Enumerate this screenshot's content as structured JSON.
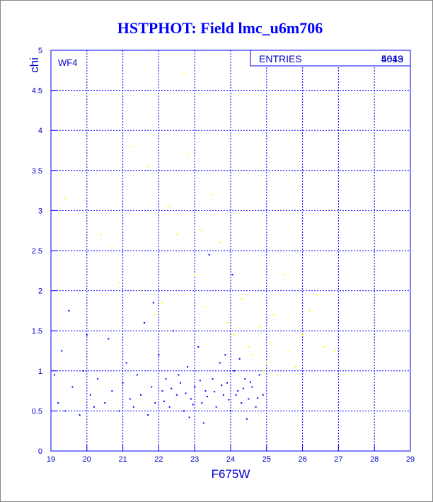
{
  "chart_data": {
    "type": "scatter",
    "title": "HSTPHOT: Field lmc_u6m706",
    "xlabel": "F675W",
    "ylabel": "chi",
    "panel_label": "WF4",
    "stats_label": "ENTRIES",
    "stats_values": [
      4013,
      5649
    ],
    "xlim": [
      19,
      29
    ],
    "ylim": [
      0,
      5
    ],
    "xticks": [
      19,
      20,
      21,
      22,
      23,
      24,
      25,
      26,
      27,
      28,
      29
    ],
    "yticks": [
      0,
      0.5,
      1,
      1.5,
      2,
      2.5,
      3,
      3.5,
      4,
      4.5,
      5
    ],
    "grid": true,
    "series": [
      {
        "color": "#0000ff",
        "x": [
          19.1,
          19.2,
          19.3,
          19.4,
          19.5,
          19.6,
          19.8,
          19.9,
          20.1,
          20.2,
          20.3,
          20.5,
          20.6,
          20.7,
          20.9,
          21.0,
          21.1,
          21.2,
          21.3,
          21.4,
          21.5,
          21.6,
          21.7,
          21.8,
          21.9,
          22.0,
          22.1,
          22.2,
          22.3,
          22.4,
          22.5,
          22.6,
          22.7,
          22.8,
          22.9,
          23.0,
          23.1,
          23.2,
          23.3,
          23.4,
          23.5,
          23.6,
          23.7,
          23.8,
          23.9,
          24.0,
          24.1,
          24.2,
          24.3,
          24.4,
          24.5,
          24.6,
          24.7,
          24.8,
          24.9,
          22.15,
          22.35,
          22.55,
          22.75,
          22.95,
          23.15,
          23.35,
          23.55,
          23.75,
          23.95,
          24.15,
          24.35,
          24.55,
          24.75,
          24.25,
          23.85,
          24.45,
          23.25,
          22.85,
          24.05,
          21.85,
          20.0
        ],
        "y": [
          0.95,
          0.6,
          1.25,
          0.5,
          1.75,
          0.8,
          0.45,
          1.0,
          0.7,
          0.55,
          0.9,
          0.6,
          1.4,
          0.75,
          0.5,
          0.85,
          1.1,
          0.65,
          0.55,
          0.95,
          0.7,
          1.6,
          0.45,
          0.8,
          0.6,
          1.2,
          0.75,
          0.9,
          0.55,
          1.5,
          0.7,
          0.85,
          0.5,
          1.05,
          0.65,
          0.8,
          1.3,
          0.6,
          0.75,
          2.45,
          0.9,
          0.55,
          1.1,
          0.7,
          0.85,
          0.5,
          1.0,
          0.75,
          0.6,
          0.9,
          0.65,
          0.8,
          0.55,
          0.95,
          0.7,
          0.62,
          0.78,
          0.95,
          0.72,
          0.58,
          0.88,
          0.68,
          0.74,
          0.82,
          0.64,
          0.7,
          0.78,
          0.86,
          0.66,
          1.15,
          1.2,
          0.4,
          0.35,
          0.42,
          2.2,
          1.85,
          1.45
        ]
      },
      {
        "color": "#ffff00",
        "x": [
          19.4,
          20.4,
          20.7,
          21.3,
          21.5,
          21.7,
          21.9,
          22.1,
          22.3,
          22.5,
          22.7,
          22.8,
          23.0,
          23.2,
          23.5,
          23.7,
          23.9,
          24.1,
          24.3,
          24.5,
          24.6,
          24.8,
          25.0,
          25.1,
          25.3,
          25.5,
          25.6,
          25.8,
          26.0,
          26.2,
          26.4,
          26.6,
          26.9,
          25.2,
          24.9,
          23.3,
          22.2,
          20.9
        ],
        "y": [
          3.15,
          2.7,
          2.55,
          3.8,
          2.0,
          3.55,
          1.7,
          1.85,
          3.05,
          2.7,
          4.7,
          3.7,
          2.2,
          2.75,
          3.2,
          2.6,
          1.6,
          1.45,
          1.9,
          1.3,
          1.2,
          1.55,
          1.1,
          1.35,
          0.95,
          2.2,
          1.25,
          1.05,
          1.45,
          1.75,
          1.95,
          1.3,
          1.25,
          1.7,
          1.0,
          1.8,
          1.5,
          2.1
        ]
      }
    ]
  }
}
